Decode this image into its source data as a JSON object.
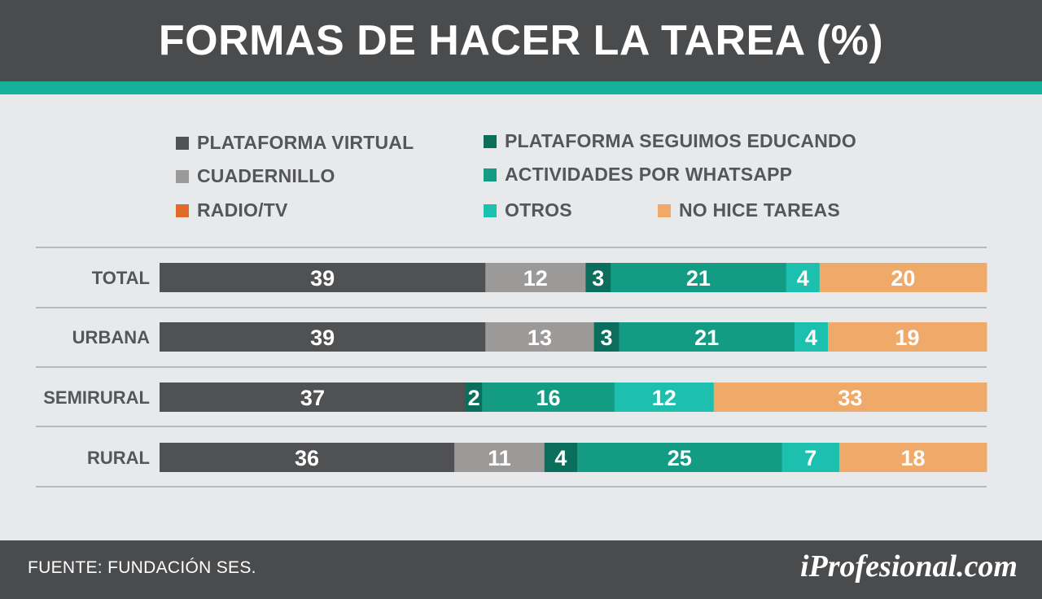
{
  "title": "FORMAS DE HACER LA TAREA (%)",
  "source": "FUENTE: FUNDACIÓN SES.",
  "brand": "iProfesional.com",
  "colors": {
    "header_bg": "#4a4b4d",
    "accent_stripe": "#17b09a",
    "page_bg": "#e8e9ea",
    "text": "#55565a"
  },
  "chart_data": {
    "type": "bar",
    "orientation": "horizontal",
    "stacked": true,
    "title": "FORMAS DE HACER LA TAREA (%)",
    "categories": [
      "TOTAL",
      "URBANA",
      "SEMIRURAL",
      "RURAL"
    ],
    "legend_position": "top",
    "series": [
      {
        "name": "PLATAFORMA VIRTUAL",
        "color": "#505153",
        "values": [
          39,
          39,
          37,
          36
        ]
      },
      {
        "name": "CUADERNILLO",
        "color": "#9c9a99",
        "values": [
          12,
          13,
          null,
          11
        ]
      },
      {
        "name": "RADIO/TV",
        "color": "#e06a2a",
        "values": [
          null,
          null,
          null,
          null
        ]
      },
      {
        "name": "PLATAFORMA SEGUIMOS EDUCANDO",
        "color": "#0b6e5c",
        "values": [
          3,
          3,
          2,
          4
        ]
      },
      {
        "name": "ACTIVIDADES POR WHATSAPP",
        "color": "#139c83",
        "values": [
          21,
          21,
          16,
          25
        ]
      },
      {
        "name": "OTROS",
        "color": "#1dbfae",
        "values": [
          4,
          4,
          12,
          7
        ]
      },
      {
        "name": "NO HICE TAREAS",
        "color": "#efaa6a",
        "values": [
          20,
          19,
          33,
          18
        ]
      }
    ]
  }
}
